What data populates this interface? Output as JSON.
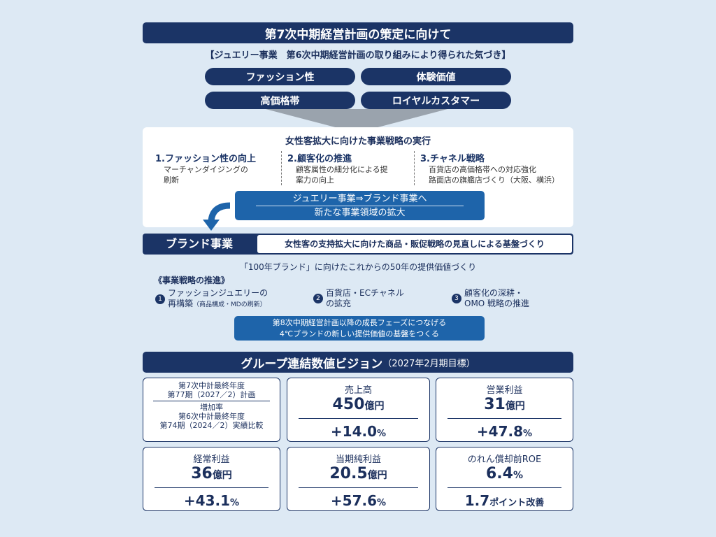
{
  "title": "第7次中期経営計画の策定に向けて",
  "subtitle": "【ジュエリー事業　第6次中期経営計画の取り組みにより得られた気づき】",
  "insights": [
    "ファッション性",
    "体験価値",
    "高価格帯",
    "ロイヤルカスタマー"
  ],
  "strategy": {
    "heading": "女性客拡大に向けた事業戦略の実行",
    "columns": [
      {
        "title": "1.ファッション性の向上",
        "lines": [
          "マーチャンダイジングの",
          "刷新"
        ]
      },
      {
        "title": "2.顧客化の推進",
        "lines": [
          "顧客属性の細分化による提",
          "案力の向上"
        ]
      },
      {
        "title": "3.チャネル戦略",
        "lines": [
          "百貨店の高価格帯への対応強化",
          "路面店の旗艦店づくり（大阪、横浜）"
        ]
      }
    ],
    "transition": [
      "ジュエリー事業⇒ブランド事業へ",
      "新たな事業領域の拡大"
    ]
  },
  "brand": {
    "label": "ブランド事業",
    "desc": "女性客の支持拡大に向けた商品・販促戦略の見直しによる基盤づくり",
    "heading": "「100年ブランド」に向けたこれからの50年の提供価値づくり",
    "promo": "《事業戦略の推進》",
    "items": [
      {
        "n": "1",
        "l1": "ファッションジュエリーの",
        "l2": "再構築",
        "note": "（商品構成・MDの刷新）"
      },
      {
        "n": "2",
        "l1": "百貨店・ECチャネル",
        "l2": "の拡充",
        "note": ""
      },
      {
        "n": "3",
        "l1": "顧客化の深耕・",
        "l2": "OMO 戦略の推進",
        "note": ""
      }
    ],
    "goal": [
      "第8次中期経営計画以降の成長フェーズにつなげる",
      "4℃ブランドの新しい提供価値の基盤をつくる"
    ]
  },
  "vision": {
    "title": "グループ連結数値ビジョン",
    "title_note": "（2027年2月期目標）",
    "legend": {
      "top": [
        "第7次中計最終年度",
        "第77期（2027／2）計画"
      ],
      "bottom": [
        "増加率",
        "第6次中計最終年度",
        "第74期（2024／2）実績比較"
      ]
    },
    "cards": [
      {
        "label": "売上高",
        "value": "450",
        "unit": "億円",
        "change": "+14.0",
        "change_unit": "%"
      },
      {
        "label": "営業利益",
        "value": "31",
        "unit": "億円",
        "change": "+47.8",
        "change_unit": "%"
      },
      {
        "label": "経常利益",
        "value": "36",
        "unit": "億円",
        "change": "+43.1",
        "change_unit": "%"
      },
      {
        "label": "当期純利益",
        "value": "20.5",
        "unit": "億円",
        "change": "+57.6",
        "change_unit": "%"
      },
      {
        "label": "のれん償却前ROE",
        "value": "6.4",
        "unit": "%",
        "change": "1.7",
        "change_unit": "ポイント改善"
      }
    ]
  },
  "colors": {
    "navy": "#1b3466",
    "blue": "#1e64aa",
    "background": "#dde9f4"
  }
}
